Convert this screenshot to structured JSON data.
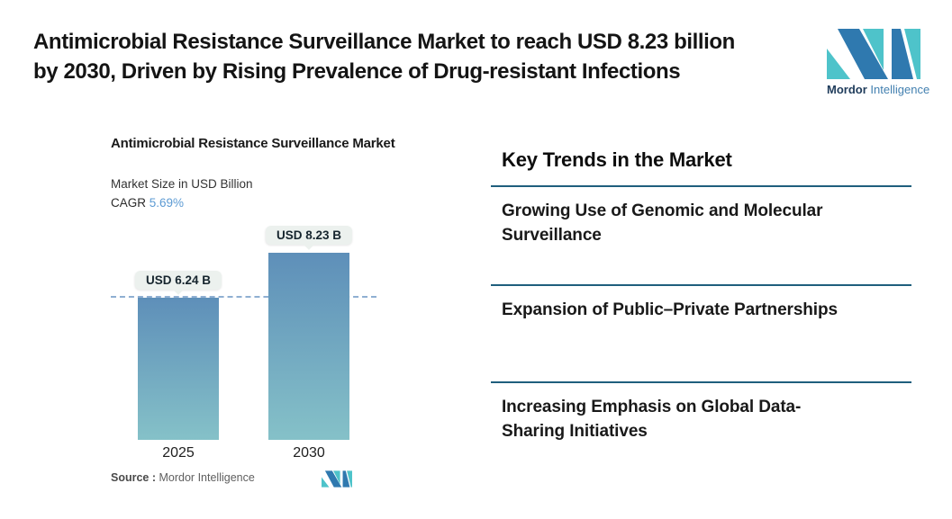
{
  "header": {
    "title_lines": [
      "Antimicrobial Resistance Surveillance Market to reach USD 8.23 billion",
      "by 2030, Driven by Rising Prevalence of Drug-resistant Infections"
    ]
  },
  "brand": {
    "name_primary": "Mordor",
    "name_secondary": "Intelligence"
  },
  "chart": {
    "title": "Antimicrobial Resistance Surveillance Market",
    "subtitle": "Market Size in USD Billion",
    "cagr_label": "CAGR",
    "cagr_value": "5.69%",
    "source_label": "Source :",
    "source_value": "Mordor Intelligence"
  },
  "chart_data": {
    "type": "bar",
    "title": "Antimicrobial Resistance Surveillance Market",
    "ylabel": "Market Size in USD Billion",
    "unit": "USD Billion",
    "cagr": "5.69%",
    "categories": [
      "2025",
      "2030"
    ],
    "values": [
      6.24,
      8.23
    ],
    "data_labels": [
      "USD 6.24 B",
      "USD 8.23 B"
    ],
    "reference_line": 6.24,
    "ylim": [
      0,
      8.23
    ],
    "grid": false,
    "legend": "none"
  },
  "trends": {
    "heading": "Key Trends in the Market",
    "items": [
      {
        "lines": [
          "Growing Use of Genomic and Molecular",
          "Surveillance"
        ]
      },
      {
        "lines": [
          "Expansion of Public–Private Partnerships"
        ]
      },
      {
        "lines": [
          "Increasing Emphasis on Global Data-",
          "Sharing Initiatives"
        ]
      }
    ]
  },
  "colors": {
    "brand-teal": "#4EC3CA",
    "brand-blue": "#2F79AF",
    "brand-dark": "#1F3C5B",
    "brand-name-blue": "#4380B0",
    "bar-top": "#5E8FB9",
    "bar-bottom": "#85C1C8",
    "dashed-line": "#8FAFD2",
    "divider": "#1F5F7D",
    "cagr-blue": "#5D9BD3",
    "pill-bg": "#ECF1EE",
    "text-dark": "#141414",
    "text-gray": "#555555"
  }
}
